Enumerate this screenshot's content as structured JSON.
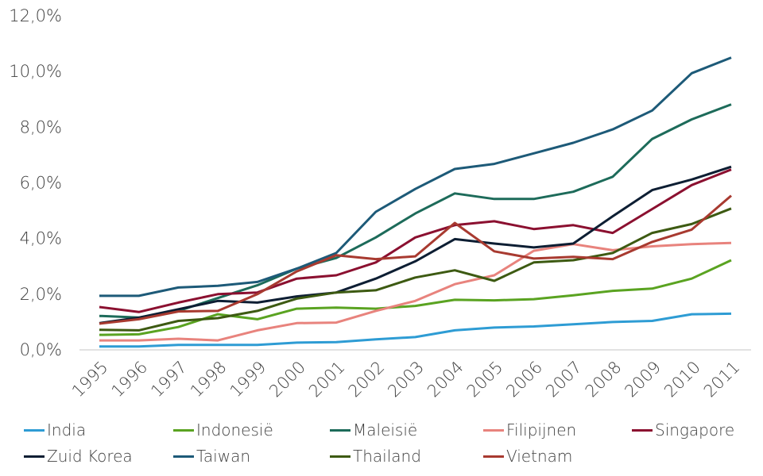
{
  "chart_data": {
    "type": "line",
    "x": [
      "1995",
      "1996",
      "1997",
      "1998",
      "1999",
      "2000",
      "2001",
      "2002",
      "2003",
      "2004",
      "2005",
      "2006",
      "2007",
      "2008",
      "2009",
      "2010",
      "2011"
    ],
    "ylim": [
      0,
      12
    ],
    "yticks": [
      "0,0%",
      "2,0%",
      "4,0%",
      "6,0%",
      "8,0%",
      "10,0%",
      "12,0%"
    ],
    "grid": false,
    "legend_position": "bottom",
    "series": [
      {
        "name": "India",
        "color": "#2e9cd4",
        "values": [
          0.12,
          0.12,
          0.18,
          0.18,
          0.18,
          0.26,
          0.28,
          0.38,
          0.46,
          0.7,
          0.8,
          0.84,
          0.92,
          1.0,
          1.04,
          1.28,
          1.3
        ]
      },
      {
        "name": "Indonesië",
        "color": "#5aa321",
        "values": [
          0.54,
          0.56,
          0.82,
          1.28,
          1.1,
          1.48,
          1.52,
          1.48,
          1.58,
          1.8,
          1.78,
          1.82,
          1.96,
          2.12,
          2.2,
          2.56,
          3.22
        ]
      },
      {
        "name": "Maleisië",
        "color": "#1d6b5a",
        "values": [
          1.22,
          1.16,
          1.4,
          1.86,
          2.32,
          2.92,
          3.3,
          4.04,
          4.9,
          5.62,
          5.42,
          5.42,
          5.68,
          6.22,
          7.58,
          8.28,
          8.82
        ]
      },
      {
        "name": "Filipijnen",
        "color": "#e8837d",
        "values": [
          0.34,
          0.34,
          0.4,
          0.34,
          0.7,
          0.96,
          0.98,
          1.4,
          1.76,
          2.36,
          2.68,
          3.56,
          3.8,
          3.58,
          3.72,
          3.8,
          3.84
        ]
      },
      {
        "name": "Singapore",
        "color": "#8b1030",
        "values": [
          1.54,
          1.36,
          1.7,
          2.0,
          2.06,
          2.56,
          2.68,
          3.14,
          4.04,
          4.48,
          4.62,
          4.34,
          4.48,
          4.2,
          5.06,
          5.92,
          6.48
        ]
      },
      {
        "name": "Zuid Korea",
        "color": "#0d1e33",
        "values": [
          0.96,
          1.16,
          1.46,
          1.76,
          1.7,
          1.92,
          2.06,
          2.56,
          3.18,
          3.98,
          3.82,
          3.68,
          3.82,
          4.8,
          5.74,
          6.12,
          6.58
        ]
      },
      {
        "name": "Taiwan",
        "color": "#1d5a78",
        "values": [
          1.94,
          1.94,
          2.24,
          2.3,
          2.44,
          2.92,
          3.48,
          4.96,
          5.78,
          6.5,
          6.68,
          7.06,
          7.44,
          7.92,
          8.6,
          9.94,
          10.5
        ]
      },
      {
        "name": "Thailand",
        "color": "#3d5a12",
        "values": [
          0.72,
          0.7,
          1.04,
          1.14,
          1.4,
          1.84,
          2.06,
          2.14,
          2.6,
          2.86,
          2.48,
          3.14,
          3.22,
          3.48,
          4.2,
          4.52,
          5.08
        ]
      },
      {
        "name": "Vietnam",
        "color": "#a83a30",
        "values": [
          0.94,
          1.1,
          1.38,
          1.4,
          2.0,
          2.82,
          3.4,
          3.26,
          3.36,
          4.56,
          3.54,
          3.28,
          3.34,
          3.26,
          3.88,
          4.32,
          5.54
        ]
      }
    ]
  }
}
